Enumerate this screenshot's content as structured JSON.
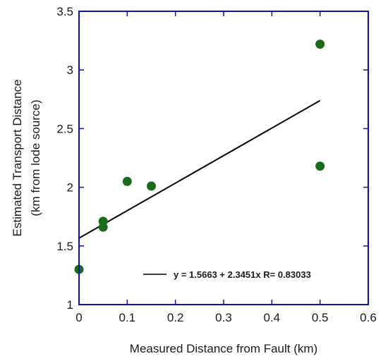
{
  "chart_data": {
    "type": "scatter",
    "xlabel": "Measured Distance from Fault (km)",
    "ylabel_lines": [
      "Estimated  Transport Distance",
      "(km from lode source)"
    ],
    "xlim": [
      0,
      0.6
    ],
    "ylim": [
      1,
      3.5
    ],
    "x_ticks": [
      "0",
      "0.1",
      "0.2",
      "0.3",
      "0.4",
      "0.5",
      "0.6"
    ],
    "y_ticks": [
      "1",
      "1.5",
      "2",
      "2.5",
      "3",
      "3.5"
    ],
    "points": [
      {
        "x": 0,
        "y": 1.3
      },
      {
        "x": 0.05,
        "y": 1.71
      },
      {
        "x": 0.05,
        "y": 1.66
      },
      {
        "x": 0.1,
        "y": 2.05
      },
      {
        "x": 0.15,
        "y": 2.01
      },
      {
        "x": 0.5,
        "y": 3.22
      },
      {
        "x": 0.5,
        "y": 2.18
      }
    ],
    "fit": {
      "intercept": 1.5663,
      "slope": 2.3451,
      "x_range": [
        0,
        0.5
      ]
    },
    "legend_text": "y = 1.5663 + 2.3451x   R= 0.83033",
    "legend_position": "lower-right",
    "grid": false,
    "colors": {
      "frame": "#1010b0",
      "point": "#1a6b1a",
      "line": "#000000"
    }
  }
}
